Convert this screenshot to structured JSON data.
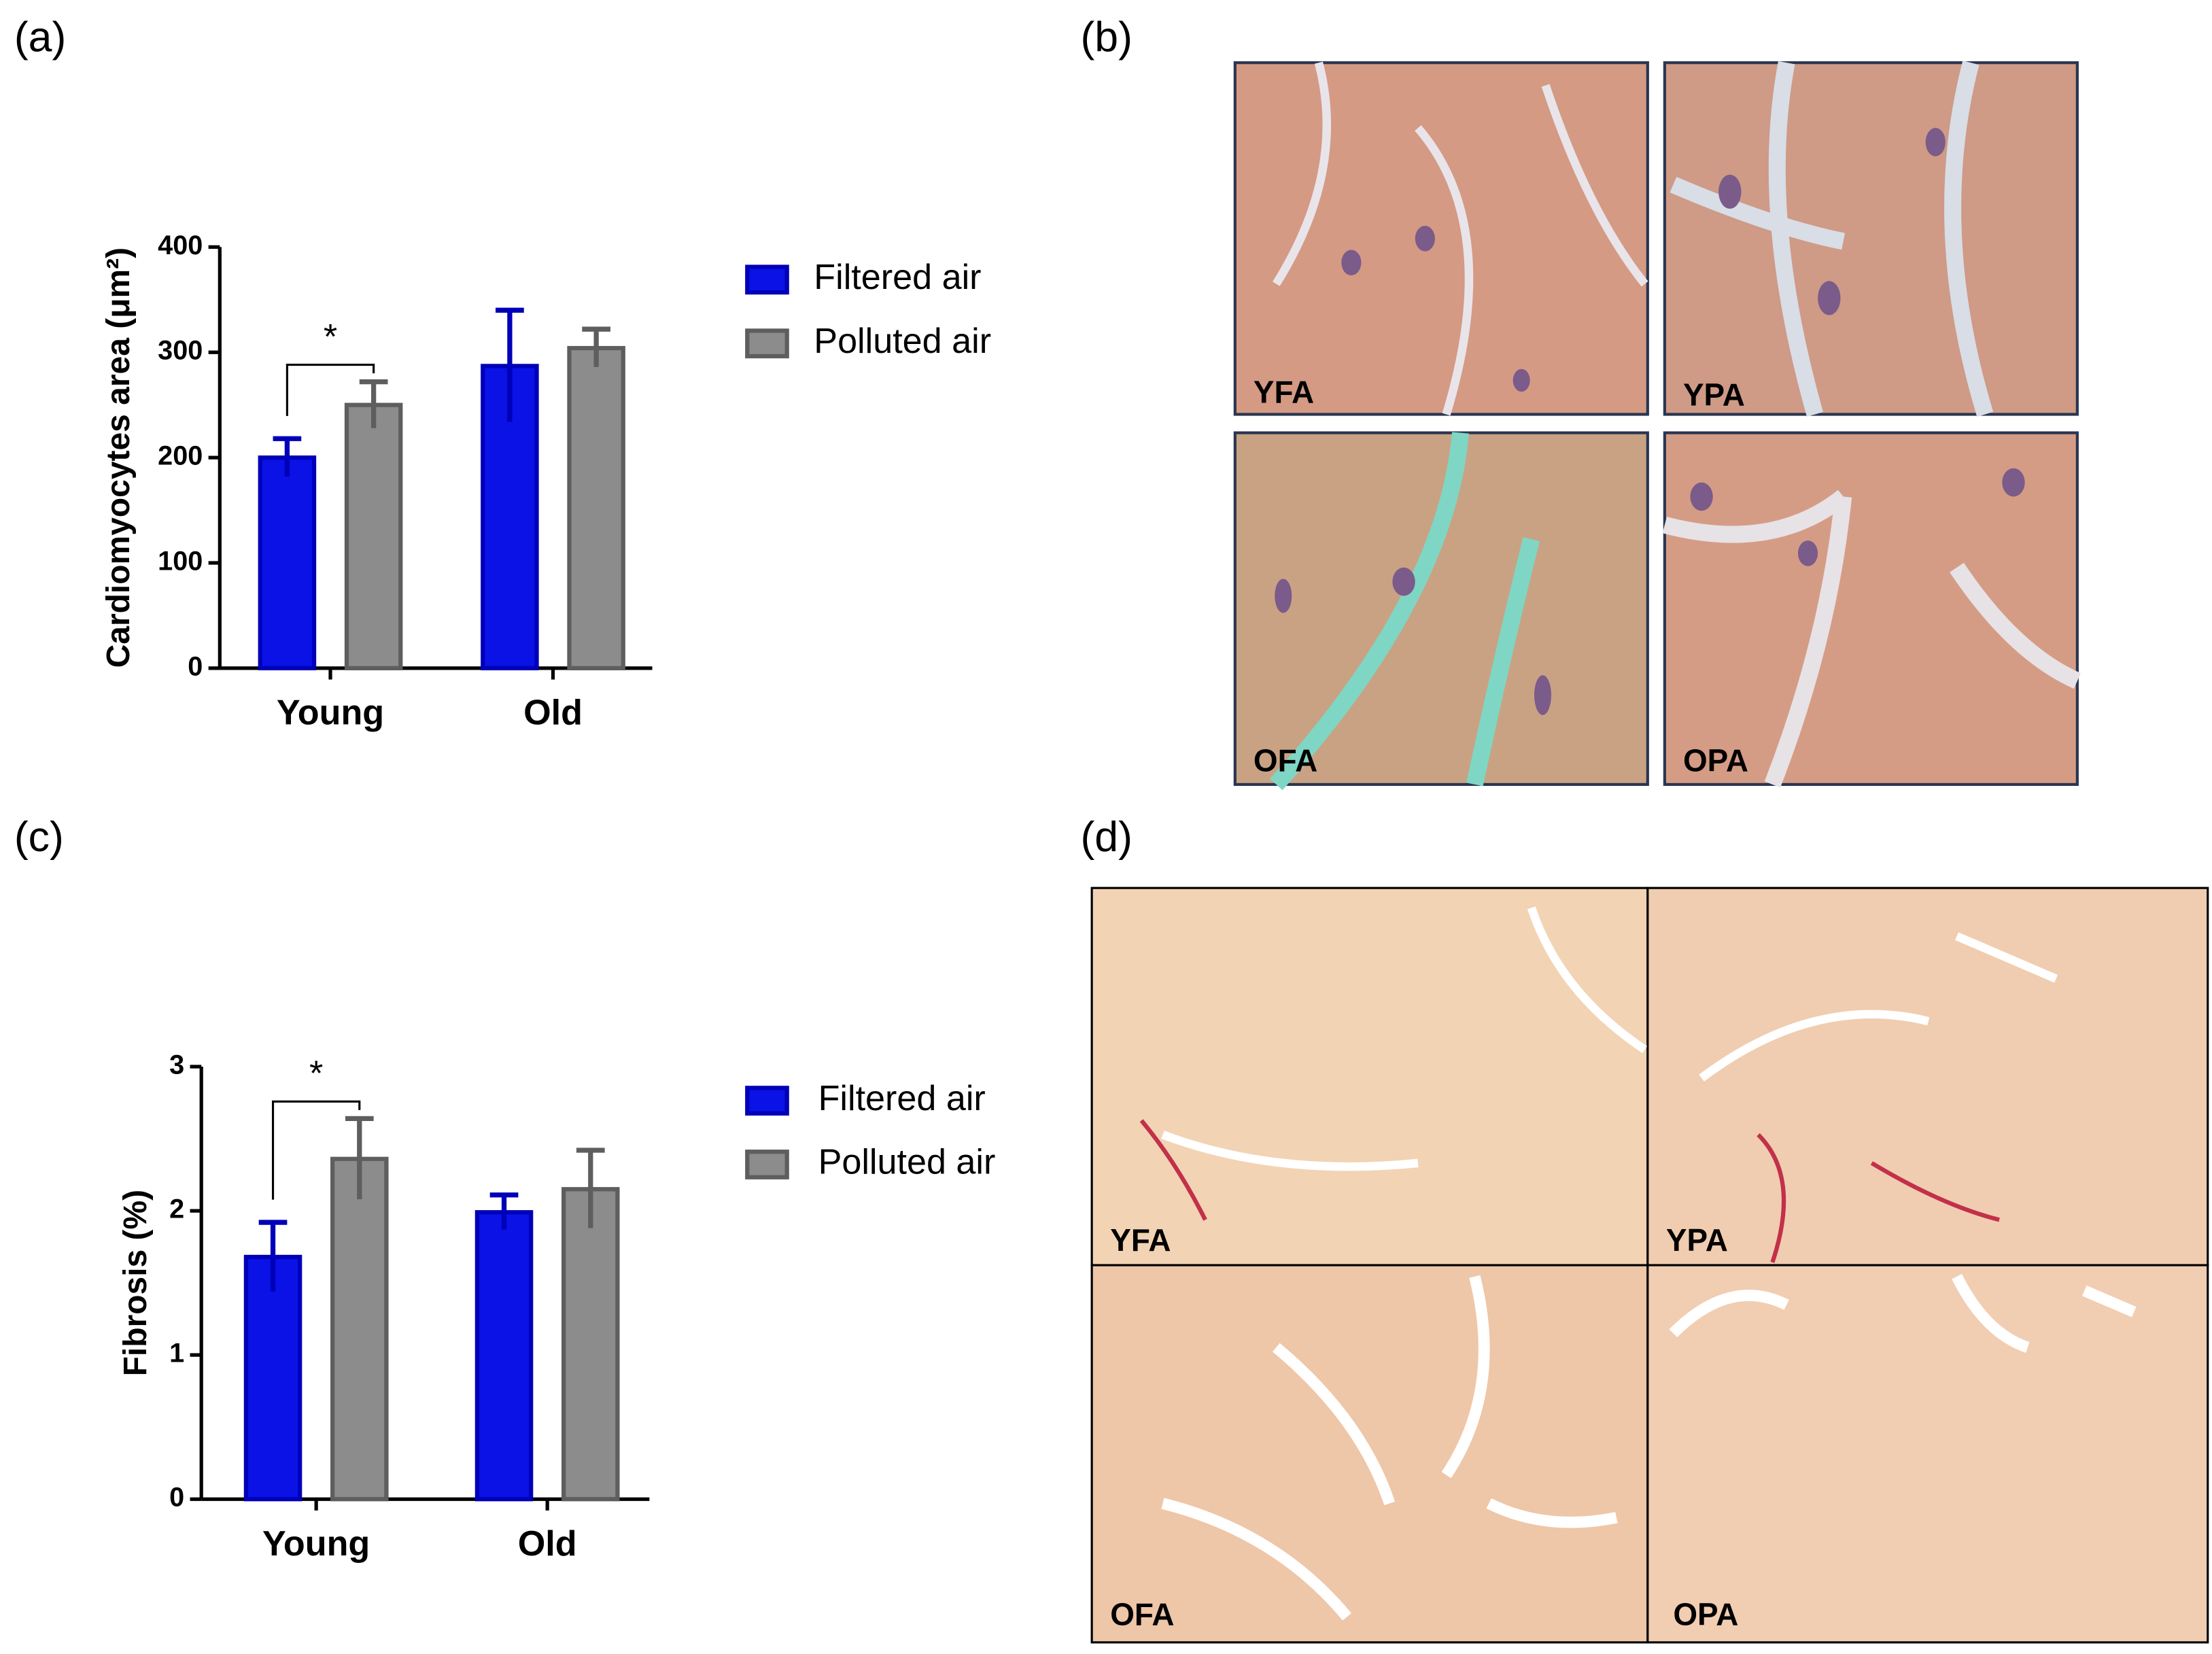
{
  "panels": {
    "labels": [
      "(a)",
      "(b)",
      "(c)",
      "(d)"
    ],
    "b_images": [
      "YFA",
      "YPA",
      "OFA",
      "OPA"
    ],
    "d_images": [
      "YFA",
      "YPA",
      "OFA",
      "OPA"
    ]
  },
  "chart_data": [
    {
      "type": "bar",
      "ylabel": "Cardiomyocytes area (μm²)",
      "categories": [
        "Young",
        "Old"
      ],
      "series": [
        {
          "name": "Filtered air",
          "color": "#0a12e6",
          "values": [
            200,
            287
          ],
          "errors": [
            18,
            53
          ]
        },
        {
          "name": "Polluted air",
          "color": "#8c8c8c",
          "values": [
            250,
            304
          ],
          "errors": [
            22,
            18
          ]
        }
      ],
      "ylim": [
        0,
        400
      ],
      "yticks": [
        0,
        100,
        200,
        300,
        400
      ],
      "annotation": "*"
    },
    {
      "type": "bar",
      "ylabel": "Fibrosis (%)",
      "categories": [
        "Young",
        "Old"
      ],
      "series": [
        {
          "name": "Filtered air",
          "color": "#0a12e6",
          "values": [
            1.68,
            1.99
          ],
          "errors": [
            0.24,
            0.12
          ]
        },
        {
          "name": "Polluted air",
          "color": "#8c8c8c",
          "values": [
            2.36,
            2.15
          ],
          "errors": [
            0.28,
            0.27
          ]
        }
      ],
      "ylim": [
        0,
        3
      ],
      "yticks": [
        0,
        1,
        2,
        3
      ],
      "annotation": "*"
    }
  ]
}
